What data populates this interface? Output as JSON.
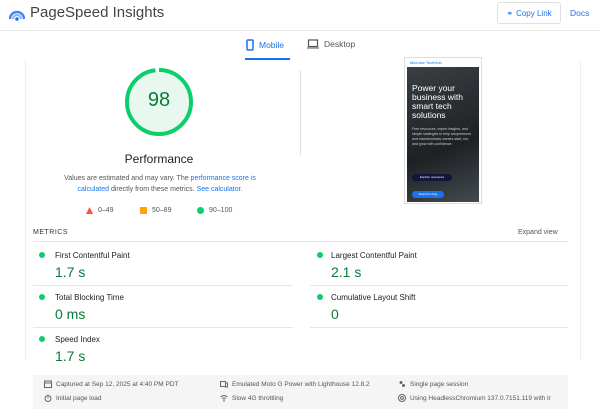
{
  "header": {
    "title": "PageSpeed Insights",
    "copy_link": "Copy Link",
    "docs": "Docs"
  },
  "tabs": [
    {
      "label": "Mobile",
      "active": true
    },
    {
      "label": "Desktop",
      "active": false
    }
  ],
  "score": {
    "value": "98",
    "fraction": 0.98,
    "label": "Performance",
    "color": "#0cce6b"
  },
  "note": {
    "pre": "Values are estimated and may vary. The ",
    "link1": "performance score is calculated",
    "mid": " directly from these metrics. ",
    "link2": "See calculator."
  },
  "legend": [
    {
      "range": "0–49",
      "color": "#ff4e42",
      "shape": "triangle"
    },
    {
      "range": "50–89",
      "color": "#ffa400",
      "shape": "square"
    },
    {
      "range": "90–100",
      "color": "#0cce6b",
      "shape": "circle"
    }
  ],
  "preview": {
    "brand": "Microbiz TechHub",
    "headline": "Power your business with smart tech solutions",
    "body": "Free resources, expert insights, and simple strategies to help solopreneurs and microbusiness owners start, run, and grow with confidence.",
    "button1": "Explore resources",
    "button2": "Read the blog"
  },
  "metrics": {
    "heading": "METRICS",
    "expand": "Expand view",
    "items": [
      {
        "label": "First Contentful Paint",
        "value": "1.7 s"
      },
      {
        "label": "Largest Contentful Paint",
        "value": "2.1 s"
      },
      {
        "label": "Total Blocking Time",
        "value": "0 ms"
      },
      {
        "label": "Cumulative Layout Shift",
        "value": "0"
      },
      {
        "label": "Speed Index",
        "value": "1.7 s"
      }
    ]
  },
  "footer": [
    {
      "icon": "calendar-icon",
      "text": "Captured at Sep 12, 2025 at 4:40 PM PDT"
    },
    {
      "icon": "devices-icon",
      "text": "Emulated Moto G Power with Lighthouse 12.8.2"
    },
    {
      "icon": "users-icon",
      "text": "Single page session"
    },
    {
      "icon": "timer-icon",
      "text": "Initial page load"
    },
    {
      "icon": "signal-icon",
      "text": "Slow 4G throttling"
    },
    {
      "icon": "chromium-icon",
      "text": "Using HeadlessChromium 137.0.7151.119 with lr"
    }
  ]
}
